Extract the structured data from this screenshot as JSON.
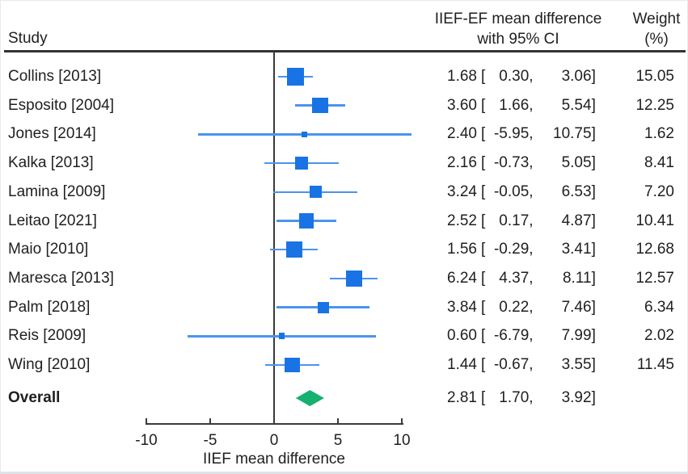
{
  "header": {
    "study": "Study",
    "effect_line1": "IIEF-EF mean difference",
    "effect_line2": "with 95% CI",
    "weight_line1": "Weight",
    "weight_line2": "(%)"
  },
  "ci_format": {
    "open": "[",
    "comma": ",",
    "close": "]"
  },
  "colors": {
    "square": "#1a73e4",
    "ci_line": "#4b94ec",
    "diamond": "#16b070",
    "axis": "#3a3a3a",
    "rule": "#333333",
    "text": "#1f1f1f"
  },
  "chart_data": {
    "type": "forest",
    "title": "",
    "xlabel": "IIEF mean difference",
    "xlim": [
      -10,
      10
    ],
    "x_ticks": [
      -10,
      -5,
      0,
      5,
      10
    ],
    "x_tick_labels": [
      "-10",
      "-5",
      "0",
      "5",
      "10"
    ],
    "columns": [
      "Study",
      "IIEF-EF mean difference with 95% CI",
      "Weight (%)"
    ],
    "studies": [
      {
        "label": "Collins [2013]",
        "est": 1.68,
        "lo": 0.3,
        "hi": 3.06,
        "weight": 15.05,
        "est_str": "1.68",
        "lo_str": "0.30",
        "hi_str": "3.06",
        "weight_str": "15.05"
      },
      {
        "label": "Esposito [2004]",
        "est": 3.6,
        "lo": 1.66,
        "hi": 5.54,
        "weight": 12.25,
        "est_str": "3.60",
        "lo_str": "1.66",
        "hi_str": "5.54",
        "weight_str": "12.25"
      },
      {
        "label": "Jones [2014]",
        "est": 2.4,
        "lo": -5.95,
        "hi": 10.75,
        "weight": 1.62,
        "est_str": "2.40",
        "lo_str": "-5.95",
        "hi_str": "10.75",
        "weight_str": "1.62"
      },
      {
        "label": "Kalka [2013]",
        "est": 2.16,
        "lo": -0.73,
        "hi": 5.05,
        "weight": 8.41,
        "est_str": "2.16",
        "lo_str": "-0.73",
        "hi_str": "5.05",
        "weight_str": "8.41"
      },
      {
        "label": "Lamina [2009]",
        "est": 3.24,
        "lo": -0.05,
        "hi": 6.53,
        "weight": 7.2,
        "est_str": "3.24",
        "lo_str": "-0.05",
        "hi_str": "6.53",
        "weight_str": "7.20"
      },
      {
        "label": "Leitao [2021]",
        "est": 2.52,
        "lo": 0.17,
        "hi": 4.87,
        "weight": 10.41,
        "est_str": "2.52",
        "lo_str": "0.17",
        "hi_str": "4.87",
        "weight_str": "10.41"
      },
      {
        "label": "Maio [2010]",
        "est": 1.56,
        "lo": -0.29,
        "hi": 3.41,
        "weight": 12.68,
        "est_str": "1.56",
        "lo_str": "-0.29",
        "hi_str": "3.41",
        "weight_str": "12.68"
      },
      {
        "label": "Maresca [2013]",
        "est": 6.24,
        "lo": 4.37,
        "hi": 8.11,
        "weight": 12.57,
        "est_str": "6.24",
        "lo_str": "4.37",
        "hi_str": "8.11",
        "weight_str": "12.57"
      },
      {
        "label": "Palm [2018]",
        "est": 3.84,
        "lo": 0.22,
        "hi": 7.46,
        "weight": 6.34,
        "est_str": "3.84",
        "lo_str": "0.22",
        "hi_str": "7.46",
        "weight_str": "6.34"
      },
      {
        "label": "Reis [2009]",
        "est": 0.6,
        "lo": -6.79,
        "hi": 7.99,
        "weight": 2.02,
        "est_str": "0.60",
        "lo_str": "-6.79",
        "hi_str": "7.99",
        "weight_str": "2.02"
      },
      {
        "label": "Wing [2010]",
        "est": 1.44,
        "lo": -0.67,
        "hi": 3.55,
        "weight": 11.45,
        "est_str": "1.44",
        "lo_str": "-0.67",
        "hi_str": "3.55",
        "weight_str": "11.45"
      }
    ],
    "overall": {
      "label": "Overall",
      "est": 2.81,
      "lo": 1.7,
      "hi": 3.92,
      "est_str": "2.81",
      "lo_str": "1.70",
      "hi_str": "3.92"
    }
  }
}
